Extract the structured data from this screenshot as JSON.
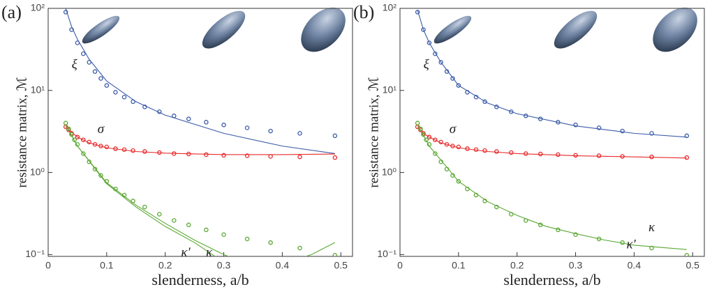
{
  "chart_data": [
    {
      "type": "line",
      "panel_label": "(a)",
      "xlabel": "slenderness, a/b",
      "ylabel": "resistance matrix, ℳ",
      "xlim": [
        0,
        0.52
      ],
      "ylim": [
        0.095,
        100
      ],
      "log_y": true,
      "xticks": [
        0,
        0.1,
        0.2,
        0.3,
        0.4,
        0.5
      ],
      "yticks": [
        {
          "value": 0.1,
          "label": "10⁻¹"
        },
        {
          "value": 1,
          "label": "10⁰"
        },
        {
          "value": 10,
          "label": "10¹"
        },
        {
          "value": 100,
          "label": "10²"
        }
      ],
      "annotations": [
        "ξ",
        "σ",
        "κ′",
        "κ"
      ],
      "series": [
        {
          "style": "markers",
          "color": "#3a5aa8",
          "x": [
            0.03,
            0.04,
            0.05,
            0.06,
            0.07,
            0.08,
            0.09,
            0.1,
            0.115,
            0.13,
            0.145,
            0.165,
            0.19,
            0.215,
            0.24,
            0.27,
            0.3,
            0.34,
            0.38,
            0.43,
            0.49
          ],
          "values": [
            90,
            55,
            38,
            28,
            22,
            17,
            14,
            11.5,
            9.5,
            8.3,
            7.3,
            6.3,
            5.5,
            4.9,
            4.5,
            4.1,
            3.8,
            3.5,
            3.2,
            3.0,
            2.8
          ]
        },
        {
          "style": "line",
          "color": "#3a5aa8",
          "x": [
            0.03,
            0.04,
            0.05,
            0.07,
            0.1,
            0.15,
            0.2,
            0.3,
            0.4,
            0.49
          ],
          "values": [
            100,
            60,
            42,
            24,
            13,
            7.3,
            5,
            3,
            2.1,
            1.7
          ]
        },
        {
          "style": "markers",
          "color": "#e8292b",
          "x": [
            0.03,
            0.035,
            0.04,
            0.05,
            0.06,
            0.07,
            0.08,
            0.09,
            0.1,
            0.115,
            0.13,
            0.145,
            0.165,
            0.19,
            0.215,
            0.24,
            0.27,
            0.3,
            0.34,
            0.38,
            0.43,
            0.49
          ],
          "values": [
            3.6,
            3.3,
            3.0,
            2.7,
            2.5,
            2.35,
            2.2,
            2.1,
            2.05,
            1.95,
            1.9,
            1.85,
            1.8,
            1.75,
            1.7,
            1.68,
            1.65,
            1.62,
            1.6,
            1.57,
            1.55,
            1.52
          ]
        },
        {
          "style": "line",
          "color": "#e8292b",
          "x": [
            0.03,
            0.04,
            0.05,
            0.07,
            0.1,
            0.15,
            0.2,
            0.3,
            0.4,
            0.49
          ],
          "values": [
            3.6,
            3.1,
            2.7,
            2.3,
            2.0,
            1.8,
            1.72,
            1.65,
            1.65,
            1.68
          ]
        },
        {
          "style": "markers",
          "color": "#5aa832",
          "x": [
            0.03,
            0.035,
            0.04,
            0.045,
            0.05,
            0.06,
            0.07,
            0.08,
            0.09,
            0.1,
            0.115,
            0.13,
            0.145,
            0.165,
            0.19,
            0.215,
            0.24,
            0.27,
            0.3,
            0.34,
            0.38,
            0.43,
            0.49
          ],
          "values": [
            4.0,
            3.4,
            2.9,
            2.5,
            2.2,
            1.7,
            1.35,
            1.1,
            0.92,
            0.78,
            0.63,
            0.53,
            0.45,
            0.38,
            0.31,
            0.26,
            0.23,
            0.2,
            0.175,
            0.155,
            0.14,
            0.12,
            0.098
          ]
        },
        {
          "style": "line",
          "color": "#5aa832",
          "x": [
            0.03,
            0.05,
            0.1,
            0.15,
            0.2,
            0.25,
            0.3,
            0.32
          ],
          "values": [
            3.8,
            2.1,
            0.75,
            0.4,
            0.24,
            0.15,
            0.1,
            0.088
          ]
        },
        {
          "style": "line",
          "color": "#5aa832",
          "x": [
            0.03,
            0.05,
            0.1,
            0.15,
            0.2,
            0.25,
            0.29,
            0.35,
            0.42,
            0.45,
            0.49
          ],
          "values": [
            3.8,
            2.1,
            0.73,
            0.38,
            0.22,
            0.14,
            0.09,
            null,
            0.085,
            0.1,
            0.14
          ]
        }
      ]
    },
    {
      "type": "line",
      "panel_label": "(b)",
      "xlabel": "slenderness, a/b",
      "ylabel": "resistance matrix, ℳ",
      "xlim": [
        0,
        0.52
      ],
      "ylim": [
        0.095,
        100
      ],
      "log_y": true,
      "xticks": [
        0,
        0.1,
        0.2,
        0.3,
        0.4,
        0.5
      ],
      "yticks": [
        {
          "value": 0.1,
          "label": "10⁻¹"
        },
        {
          "value": 1,
          "label": "10⁰"
        },
        {
          "value": 10,
          "label": "10¹"
        },
        {
          "value": 100,
          "label": "10²"
        }
      ],
      "annotations": [
        "ξ",
        "σ",
        "κ",
        "κ′"
      ],
      "series": [
        {
          "style": "markers",
          "color": "#3a5aa8",
          "x": [
            0.03,
            0.04,
            0.05,
            0.06,
            0.07,
            0.08,
            0.09,
            0.1,
            0.115,
            0.13,
            0.145,
            0.165,
            0.19,
            0.215,
            0.24,
            0.27,
            0.3,
            0.34,
            0.38,
            0.43,
            0.49
          ],
          "values": [
            90,
            55,
            38,
            28,
            22,
            17,
            14,
            11.5,
            9.5,
            8.3,
            7.3,
            6.3,
            5.5,
            4.9,
            4.5,
            4.1,
            3.8,
            3.5,
            3.2,
            3.0,
            2.8
          ]
        },
        {
          "style": "line",
          "color": "#3a5aa8",
          "x": [
            0.03,
            0.04,
            0.05,
            0.07,
            0.1,
            0.15,
            0.2,
            0.3,
            0.4,
            0.49
          ],
          "values": [
            95,
            55,
            38,
            22,
            11.5,
            7,
            5.2,
            3.7,
            3.0,
            2.7
          ]
        },
        {
          "style": "markers",
          "color": "#e8292b",
          "x": [
            0.03,
            0.035,
            0.04,
            0.05,
            0.06,
            0.07,
            0.08,
            0.09,
            0.1,
            0.115,
            0.13,
            0.145,
            0.165,
            0.19,
            0.215,
            0.24,
            0.27,
            0.3,
            0.34,
            0.38,
            0.43,
            0.49
          ],
          "values": [
            3.6,
            3.3,
            3.0,
            2.7,
            2.5,
            2.35,
            2.2,
            2.1,
            2.05,
            1.95,
            1.9,
            1.85,
            1.8,
            1.75,
            1.7,
            1.68,
            1.65,
            1.62,
            1.6,
            1.57,
            1.55,
            1.52
          ]
        },
        {
          "style": "line",
          "color": "#e8292b",
          "x": [
            0.03,
            0.04,
            0.05,
            0.07,
            0.1,
            0.15,
            0.2,
            0.3,
            0.4,
            0.49
          ],
          "values": [
            3.6,
            3.0,
            2.7,
            2.3,
            2.0,
            1.8,
            1.7,
            1.6,
            1.55,
            1.5
          ]
        },
        {
          "style": "markers",
          "color": "#5aa832",
          "x": [
            0.03,
            0.035,
            0.04,
            0.045,
            0.05,
            0.06,
            0.07,
            0.08,
            0.09,
            0.1,
            0.115,
            0.13,
            0.145,
            0.165,
            0.19,
            0.215,
            0.24,
            0.27,
            0.3,
            0.34,
            0.38,
            0.43,
            0.49
          ],
          "values": [
            4.0,
            3.4,
            2.9,
            2.5,
            2.2,
            1.7,
            1.35,
            1.1,
            0.92,
            0.78,
            0.63,
            0.53,
            0.45,
            0.38,
            0.31,
            0.26,
            0.23,
            0.2,
            0.175,
            0.155,
            0.14,
            0.12,
            0.098
          ]
        },
        {
          "style": "line",
          "color": "#5aa832",
          "x": [
            0.03,
            0.05,
            0.1,
            0.15,
            0.2,
            0.25,
            0.3,
            0.35,
            0.4,
            0.49
          ],
          "values": [
            3.8,
            2.1,
            0.78,
            0.44,
            0.3,
            0.22,
            0.18,
            0.15,
            0.13,
            0.115
          ]
        }
      ]
    }
  ]
}
